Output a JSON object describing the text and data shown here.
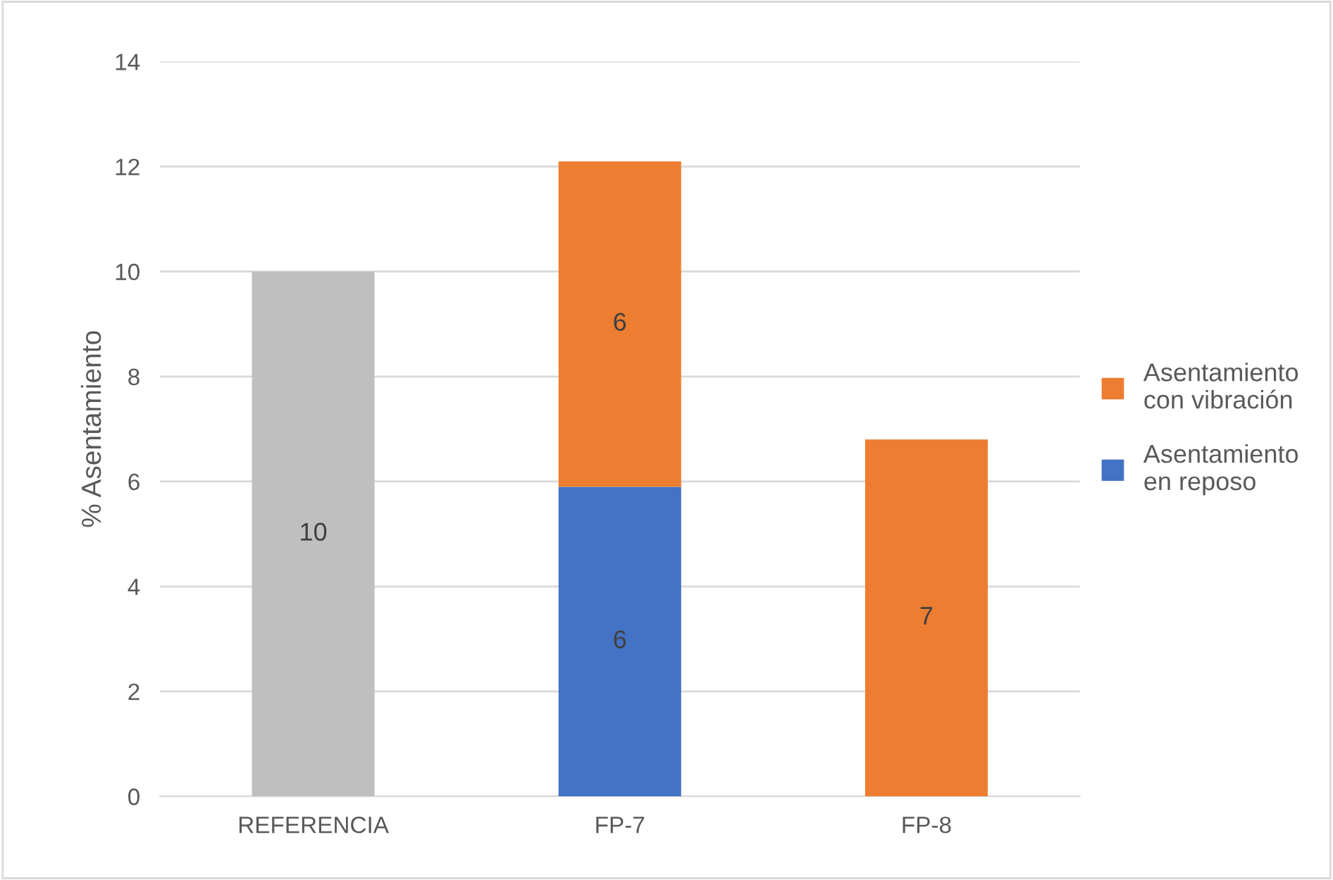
{
  "chart_data": {
    "type": "bar",
    "stacked": true,
    "ylabel": "% Asentamiento",
    "categories": [
      "REFERENCIA",
      "FP-7",
      "FP-8"
    ],
    "series": [
      {
        "color": "#bfbfbf",
        "values": [
          10,
          null,
          null
        ],
        "value_labels": [
          "10",
          null,
          null
        ]
      },
      {
        "name": "Asentamiento\nen reposo",
        "color": "#4472c4",
        "values": [
          null,
          5.9,
          null
        ],
        "value_labels": [
          null,
          "6",
          null
        ]
      },
      {
        "name": "Asentamiento\ncon vibración",
        "color": "#ed7d31",
        "values": [
          null,
          6.2,
          6.8
        ],
        "value_labels": [
          null,
          "6",
          "7"
        ]
      }
    ],
    "ylim": [
      0,
      14
    ],
    "yticks": [
      0,
      2,
      4,
      6,
      8,
      10,
      12,
      14
    ],
    "grid": "y",
    "legend": "right"
  }
}
